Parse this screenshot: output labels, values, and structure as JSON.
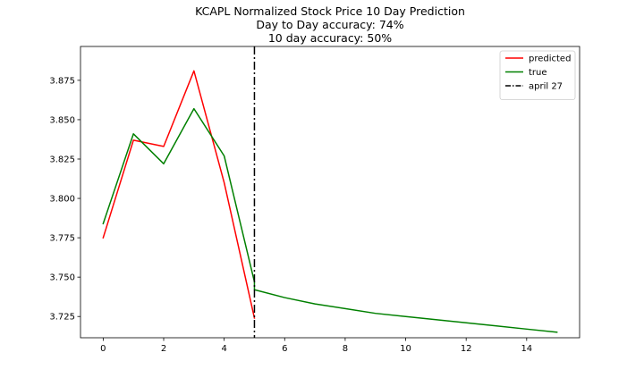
{
  "chart_data": {
    "type": "line",
    "title_lines": [
      "KCAPL Normalized Stock Price 10 Day Prediction",
      "Day to Day accuracy: 74%",
      "10 day accuracy: 50%"
    ],
    "xlim": [
      -0.75,
      15.75
    ],
    "ylim": [
      3.7115,
      3.8965
    ],
    "x_ticks": [
      0,
      2,
      4,
      6,
      8,
      10,
      12,
      14
    ],
    "y_ticks": [
      3.725,
      3.75,
      3.775,
      3.8,
      3.825,
      3.85,
      3.875
    ],
    "x_tick_labels": [
      "0",
      "2",
      "4",
      "6",
      "8",
      "10",
      "12",
      "14"
    ],
    "y_tick_labels": [
      "3.725",
      "3.750",
      "3.775",
      "3.800",
      "3.825",
      "3.850",
      "3.875"
    ],
    "grid": false,
    "legend_position": "upper right",
    "series": [
      {
        "name": "predicted",
        "color": "#ff0000",
        "x": [
          0,
          1,
          2,
          3,
          4,
          5
        ],
        "y": [
          3.775,
          3.837,
          3.833,
          3.881,
          3.81,
          3.724
        ]
      },
      {
        "name": "true",
        "color": "#008000",
        "x": [
          0,
          1,
          2,
          3,
          4,
          5,
          5,
          6,
          7,
          8,
          9,
          10,
          11,
          12,
          13,
          14,
          15
        ],
        "y": [
          3.784,
          3.841,
          3.822,
          3.857,
          3.827,
          3.747,
          3.742,
          3.737,
          3.733,
          3.73,
          3.727,
          3.725,
          3.723,
          3.721,
          3.719,
          3.717,
          3.715
        ]
      }
    ],
    "vline": {
      "name": "april 27",
      "x": 5,
      "color": "#000000",
      "style": "dashdot"
    }
  }
}
